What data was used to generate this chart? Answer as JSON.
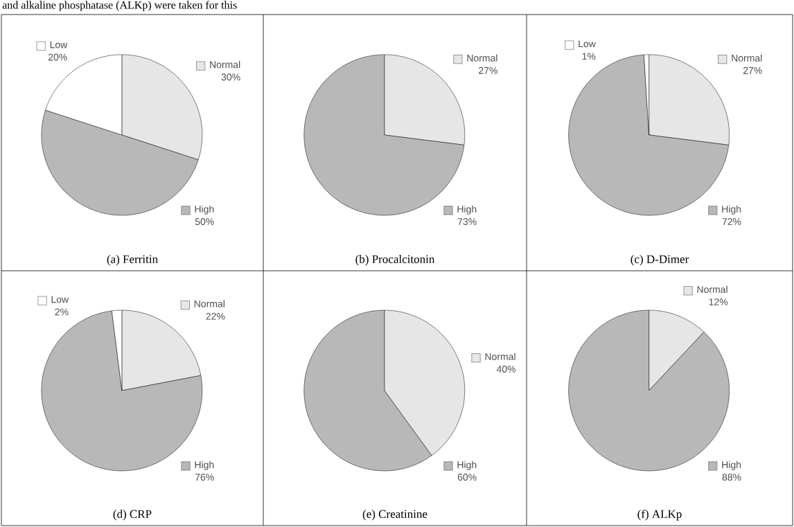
{
  "chart_data": [
    {
      "type": "pie",
      "title": "(a) Ferritin",
      "categories": [
        "Normal",
        "High",
        "Low"
      ],
      "values": [
        30,
        50,
        20
      ],
      "value_labels": [
        "30%",
        "50%",
        "20%"
      ],
      "colors": [
        "#e6e6e6",
        "#b8b8b8",
        "#ffffff"
      ],
      "legend": "right",
      "annotations": [
        "and alkaline phosphatase (ALKp) were taken for this"
      ]
    },
    {
      "type": "pie",
      "title": "(b) Procalcitonin",
      "categories": [
        "Normal",
        "High"
      ],
      "values": [
        27,
        73
      ],
      "value_labels": [
        "27%",
        "73%"
      ],
      "colors": [
        "#e6e6e6",
        "#b8b8b8"
      ],
      "legend": "right"
    },
    {
      "type": "pie",
      "title": "(c) D-Dimer",
      "categories": [
        "Normal",
        "High",
        "Low"
      ],
      "values": [
        27,
        72,
        1
      ],
      "value_labels": [
        "27%",
        "72%",
        "1%"
      ],
      "colors": [
        "#e6e6e6",
        "#b8b8b8",
        "#ffffff"
      ],
      "legend": "right"
    },
    {
      "type": "pie",
      "title": "(d) CRP",
      "categories": [
        "Normal",
        "High",
        "Low"
      ],
      "values": [
        22,
        76,
        2
      ],
      "value_labels": [
        "22%",
        "76%",
        "2%"
      ],
      "colors": [
        "#e6e6e6",
        "#b8b8b8",
        "#ffffff"
      ],
      "legend": "right"
    },
    {
      "type": "pie",
      "title": "(e) Creatinine",
      "categories": [
        "Normal",
        "High"
      ],
      "values": [
        40,
        60
      ],
      "value_labels": [
        "40%",
        "60%"
      ],
      "colors": [
        "#e6e6e6",
        "#b8b8b8"
      ],
      "legend": "right"
    },
    {
      "type": "pie",
      "title": "(f) ALKp",
      "categories": [
        "Normal",
        "High"
      ],
      "values": [
        12,
        88
      ],
      "value_labels": [
        "12%",
        "88%"
      ],
      "colors": [
        "#e6e6e6",
        "#b8b8b8"
      ],
      "legend": "right"
    }
  ]
}
